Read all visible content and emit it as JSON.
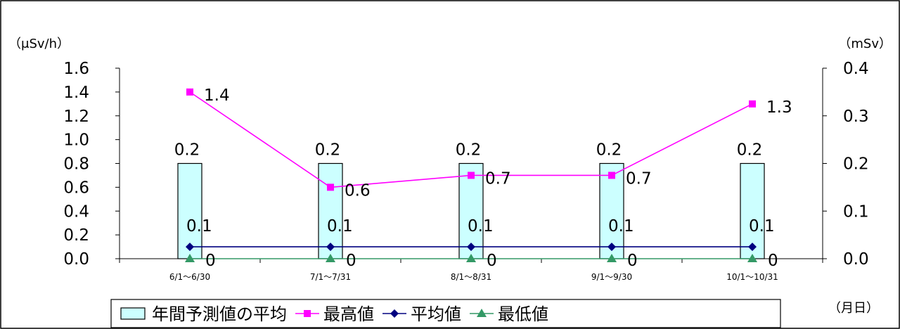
{
  "chart_data": {
    "type": "bar",
    "categories": [
      "6/1～6/30",
      "7/1～7/31",
      "8/1～8/31",
      "9/1～9/30",
      "10/1～10/31"
    ],
    "y_left": {
      "unit": "（μSv/h）",
      "min": 0,
      "max": 1.6,
      "ticks": [
        "0.0",
        "0.2",
        "0.4",
        "0.6",
        "0.8",
        "1.0",
        "1.2",
        "1.4",
        "1.6"
      ]
    },
    "y_right": {
      "unit": "（mSv）",
      "min": 0,
      "max": 0.4,
      "ticks": [
        "0.0",
        "0.1",
        "0.2",
        "0.3",
        "0.4"
      ]
    },
    "x_unit": "（月日）",
    "series": [
      {
        "name": "年間予測値の平均",
        "kind": "bar",
        "axis": "right",
        "values": [
          0.2,
          0.2,
          0.2,
          0.2,
          0.2
        ],
        "labels": [
          "0.2",
          "0.2",
          "0.2",
          "0.2",
          "0.2"
        ],
        "color": "#ccffff"
      },
      {
        "name": "最高値",
        "kind": "line",
        "axis": "left",
        "marker": "square",
        "values": [
          1.4,
          0.6,
          0.7,
          0.7,
          1.3
        ],
        "labels": [
          "1.4",
          "0.6",
          "0.7",
          "0.7",
          "1.3"
        ],
        "color": "#ff00ff"
      },
      {
        "name": "平均値",
        "kind": "line",
        "axis": "left",
        "marker": "diamond",
        "values": [
          0.1,
          0.1,
          0.1,
          0.1,
          0.1
        ],
        "labels": [
          "0.1",
          "0.1",
          "0.1",
          "0.1",
          "0.1"
        ],
        "color": "#000080"
      },
      {
        "name": "最低値",
        "kind": "line",
        "axis": "left",
        "marker": "triangle",
        "values": [
          0,
          0,
          0,
          0,
          0
        ],
        "labels": [
          "0",
          "0",
          "0",
          "0",
          "0"
        ],
        "color": "#339966"
      }
    ],
    "legend_position": "bottom"
  }
}
